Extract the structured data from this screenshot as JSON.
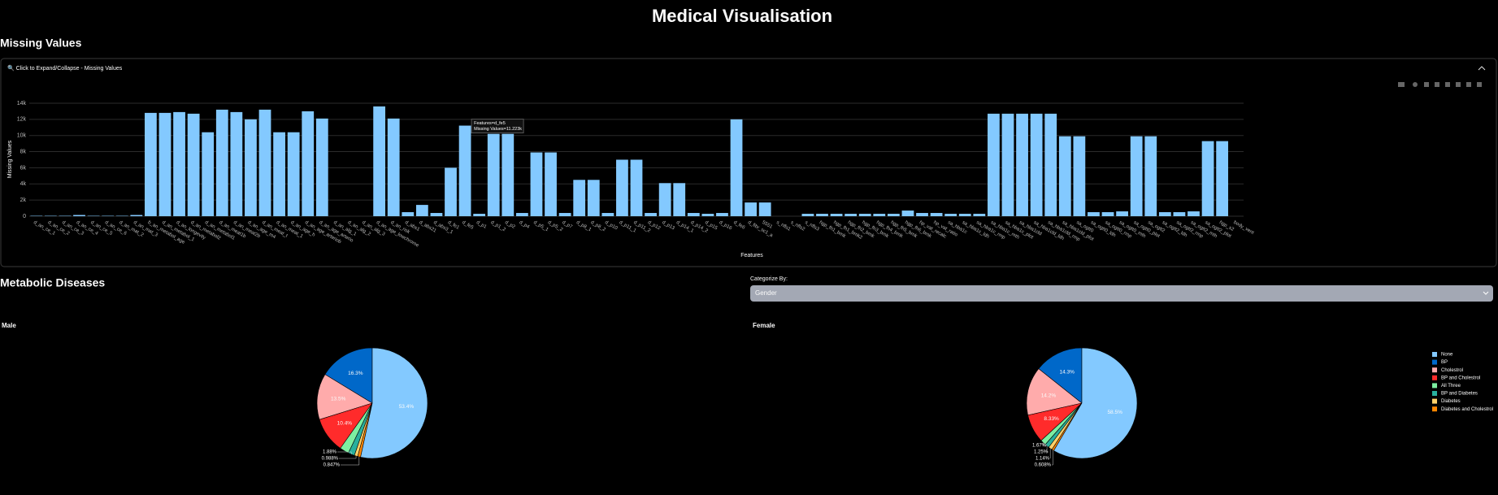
{
  "header": {
    "title": "Medical Visualisation"
  },
  "missing_values": {
    "heading": "Missing Values",
    "expander": "🔍 Click to Expand/Collapse - Missing Values",
    "tooltip": [
      "Features=d_fe5",
      "Missing Values=11.223k"
    ]
  },
  "metabolic": {
    "heading": "Metabolic Diseases",
    "select_label": "Categorize By:",
    "select_value": "Gender"
  },
  "chart_data": [
    {
      "type": "bar",
      "xlabel": "Features",
      "ylabel": "Missing Values",
      "color": "#83c9ff",
      "grid": true,
      "categories": [
        "d_an_ce_1",
        "d_an_ce_2",
        "d_an_ce_3",
        "d_an_ce_4",
        "d_an_ce_5",
        "d_an_ce_6",
        "d_an_mat_2",
        "d_an_mat_3",
        "b_an_metabol_age",
        "d_an_metabol_1",
        "d_an_longevity",
        "d_an_metabol2",
        "d_an_metabol1",
        "d_an_meat1b",
        "d_an_meat2b",
        "d_an_age_m4",
        "d_an_meat_t",
        "d_an_meat_1",
        "d_an_age_h",
        "d_an_age_arteriob",
        "d_an_age_arterio",
        "d_an_alg_1",
        "d_an_alg_2",
        "d_an_alg_3",
        "d_an_age_lowchrome",
        "d_an_risk",
        "d_abs1",
        "d_abs21",
        "d_abs3_1",
        "d_fe1",
        "d_fe5",
        "d_p1",
        "d_p1_2",
        "d_p2",
        "d_p4",
        "d_p5_1",
        "d_p5_2",
        "d_p7",
        "d_p8_1",
        "d_p8_2",
        "d_p10",
        "d_p11_1",
        "d_p11_2",
        "d_p12",
        "d_p13",
        "d_p14_1",
        "d_p14_2",
        "d_p15",
        "d_p16",
        "d_fe6",
        "d_fibr_sc1_a",
        "5551",
        "s_nfls1",
        "s_nfls2",
        "s_nfls3",
        "hgp_fh1_bmk",
        "hgp_fh1_bmk2",
        "hgp_fh2_bmk",
        "hgp_fh3_bmk",
        "hgp_fh4_bmk",
        "hgp_fh5_bmk",
        "hgp_fh6_bmk",
        "hp_vat_recalc",
        "hp_vat_ratio",
        "sa_hba1c",
        "sa_hba1c_ldh",
        "sa_hba1c_rmp",
        "sa_hba1c_mth",
        "sa_hba1c_plot",
        "sa_hba1cld",
        "sa_hba1cld_ldh",
        "sa_hba1cld_rmp",
        "sa_hba1cld_plot",
        "sa_ogtt0",
        "sa_ogtt0_ldh",
        "sa_ogtt0_rmp",
        "sa_ogtt0_mth",
        "sa_ogtt0_plot",
        "sa_ogtt2",
        "sa_ogtt2_ldh",
        "sa_ogtt2_rmp",
        "sa_ogtt2_mth",
        "sa_ogtt2_plot",
        "hgp_s2",
        "body_vent"
      ],
      "values": [
        50,
        50,
        50,
        150,
        50,
        50,
        50,
        150,
        12800,
        12800,
        12900,
        12700,
        10400,
        13200,
        12900,
        12000,
        13200,
        10400,
        10400,
        13000,
        12100,
        0,
        0,
        0,
        13600,
        12100,
        500,
        1400,
        400,
        6000,
        11223,
        300,
        10200,
        10200,
        400,
        7900,
        7900,
        400,
        4500,
        4500,
        400,
        7000,
        7000,
        400,
        4100,
        4100,
        400,
        300,
        400,
        12000,
        1700,
        1700,
        0,
        0,
        300,
        300,
        300,
        300,
        300,
        300,
        300,
        700,
        400,
        400,
        300,
        300,
        300,
        12700,
        12700,
        12700,
        12700,
        12700,
        9900,
        9900,
        500,
        500,
        600,
        9900,
        9900,
        500,
        500,
        600,
        9300,
        9300,
        0
      ],
      "ylim": [
        0,
        14500
      ],
      "yticks": [
        0,
        {
          "value": 2000,
          "label": "2k"
        },
        {
          "value": 4000,
          "label": "4k"
        },
        {
          "value": 6000,
          "label": "6k"
        },
        {
          "value": 8000,
          "label": "8k"
        },
        {
          "value": 10000,
          "label": "10k"
        },
        {
          "value": 12000,
          "label": "12k"
        },
        {
          "value": 14000,
          "label": "14k"
        }
      ]
    },
    {
      "type": "pie",
      "title": "Male",
      "categories": [
        "None",
        "BP",
        "Cholestrol",
        "BP and Cholestrol",
        "All Three",
        "BP and Diabetes",
        "Diabetes",
        "Diabetes and Cholestrol"
      ],
      "colors": [
        "#83c9ff",
        "#0068c9",
        "#ffabab",
        "#ff2b2b",
        "#7defa1",
        "#29b09d",
        "#ffd16a",
        "#ff8700"
      ],
      "values": [
        53.4,
        16.3,
        13.5,
        10.4,
        2.69,
        1.88,
        0.988,
        0.847
      ],
      "value_labels": [
        "53.4%",
        "16.3%",
        "13.5%",
        "10.4%",
        null,
        "1.88%",
        "0.988%",
        "0.847%"
      ]
    },
    {
      "type": "pie",
      "title": "Female",
      "legend": "right",
      "categories": [
        "None",
        "BP",
        "Cholestrol",
        "BP and Cholestrol",
        "All Three",
        "BP and Diabetes",
        "Diabetes",
        "Diabetes and Cholestrol"
      ],
      "colors": [
        "#83c9ff",
        "#0068c9",
        "#ffabab",
        "#ff2b2b",
        "#7defa1",
        "#29b09d",
        "#ffd16a",
        "#ff8700"
      ],
      "values": [
        58.5,
        14.3,
        14.2,
        8.33,
        1.67,
        1.25,
        1.14,
        0.608
      ],
      "value_labels": [
        "58.5%",
        "14.3%",
        "14.2%",
        "8.33%",
        "1.67%",
        "1.25%",
        "1.14%",
        "0.608%"
      ]
    }
  ]
}
